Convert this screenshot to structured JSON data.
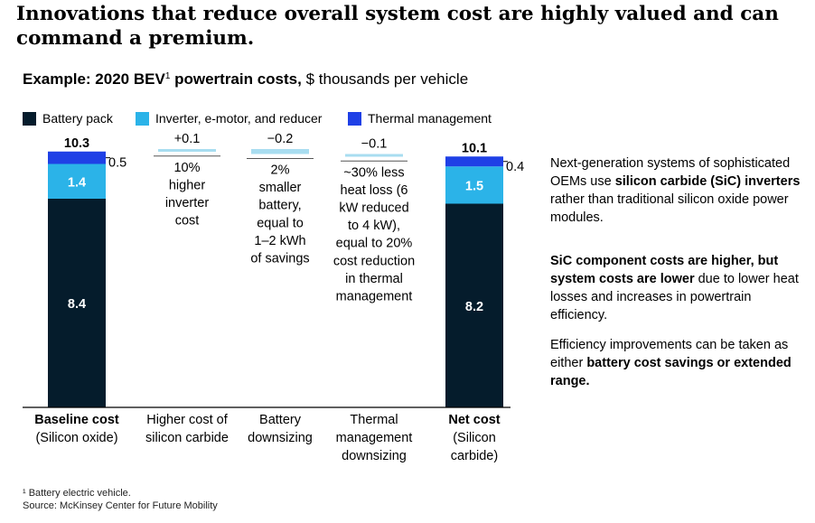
{
  "headline": "Innovations that reduce overall system cost are highly valued and can command a premium.",
  "subtitle": {
    "bold": "Example: 2020 BEV",
    "sup": "1",
    "bold_after": " powertrain costs,",
    "rest": " $ thousands per vehicle"
  },
  "colors": {
    "battery": "#051C2C",
    "inverter": "#2BB3E8",
    "thermal": "#1F40E6",
    "delta": "#A8DDF0"
  },
  "legend": [
    {
      "label": "Battery pack",
      "color": "#051C2C"
    },
    {
      "label": "Inverter, e-motor, and reducer",
      "color": "#2BB3E8"
    },
    {
      "label": "Thermal management",
      "color": "#1F40E6"
    }
  ],
  "chart_data": {
    "type": "bar",
    "subtype": "waterfall",
    "categories": [
      [
        "Baseline cost",
        "(Silicon oxide)"
      ],
      [
        "Higher cost of",
        "silicon carbide"
      ],
      [
        "Battery",
        "downsizing"
      ],
      [
        "Thermal",
        "management",
        "downsizing"
      ],
      [
        "Net cost",
        "(Silicon",
        "carbide)"
      ]
    ],
    "category_bold": [
      true,
      false,
      false,
      false,
      true
    ],
    "totals": [
      {
        "index": 0,
        "total_label": "10.3",
        "segments": [
          {
            "series": "Battery pack",
            "value": 8.4,
            "label": "8.4"
          },
          {
            "series": "Inverter, e-motor, and reducer",
            "value": 1.4,
            "label": "1.4"
          },
          {
            "series": "Thermal management",
            "value": 0.5,
            "label": "0.5"
          }
        ]
      },
      {
        "index": 4,
        "total_label": "10.1",
        "segments": [
          {
            "series": "Battery pack",
            "value": 8.2,
            "label": "8.2"
          },
          {
            "series": "Inverter, e-motor, and reducer",
            "value": 1.5,
            "label": "1.5"
          },
          {
            "series": "Thermal management",
            "value": 0.4,
            "label": "0.4"
          }
        ]
      }
    ],
    "deltas": [
      {
        "index": 1,
        "value": 0.1,
        "label": "+0.1",
        "note": [
          "10%",
          "higher",
          "inverter",
          "cost"
        ]
      },
      {
        "index": 2,
        "value": -0.2,
        "label": "−0.2",
        "note": [
          "2%",
          "smaller",
          "battery,",
          "equal to",
          "1–2 kWh",
          "of savings"
        ]
      },
      {
        "index": 3,
        "value": -0.1,
        "label": "−0.1",
        "note": [
          "~30% less",
          "heat loss (6",
          "kW reduced",
          "to 4 kW),",
          "equal to 20%",
          "cost reduction",
          "in thermal",
          "management"
        ]
      }
    ]
  },
  "side": [
    [
      {
        "t": "Next-generation systems of sophisticated OEMs use ",
        "b": false
      },
      {
        "t": "silicon carbide (SiC) inverters",
        "b": true
      },
      {
        "t": " rather than traditional silicon oxide power modules.",
        "b": false
      }
    ],
    [
      {
        "t": "SiC component costs are higher, but system costs are lower",
        "b": true
      },
      {
        "t": " due to lower heat losses and increases in powertrain efficiency.",
        "b": false
      }
    ],
    [
      {
        "t": "Efficiency improvements can be taken as either ",
        "b": false
      },
      {
        "t": "battery cost savings or extended range.",
        "b": true
      }
    ]
  ],
  "footnote": {
    "line1": "¹ Battery electric vehicle.",
    "line2": "Source: McKinsey Center for Future Mobility"
  }
}
